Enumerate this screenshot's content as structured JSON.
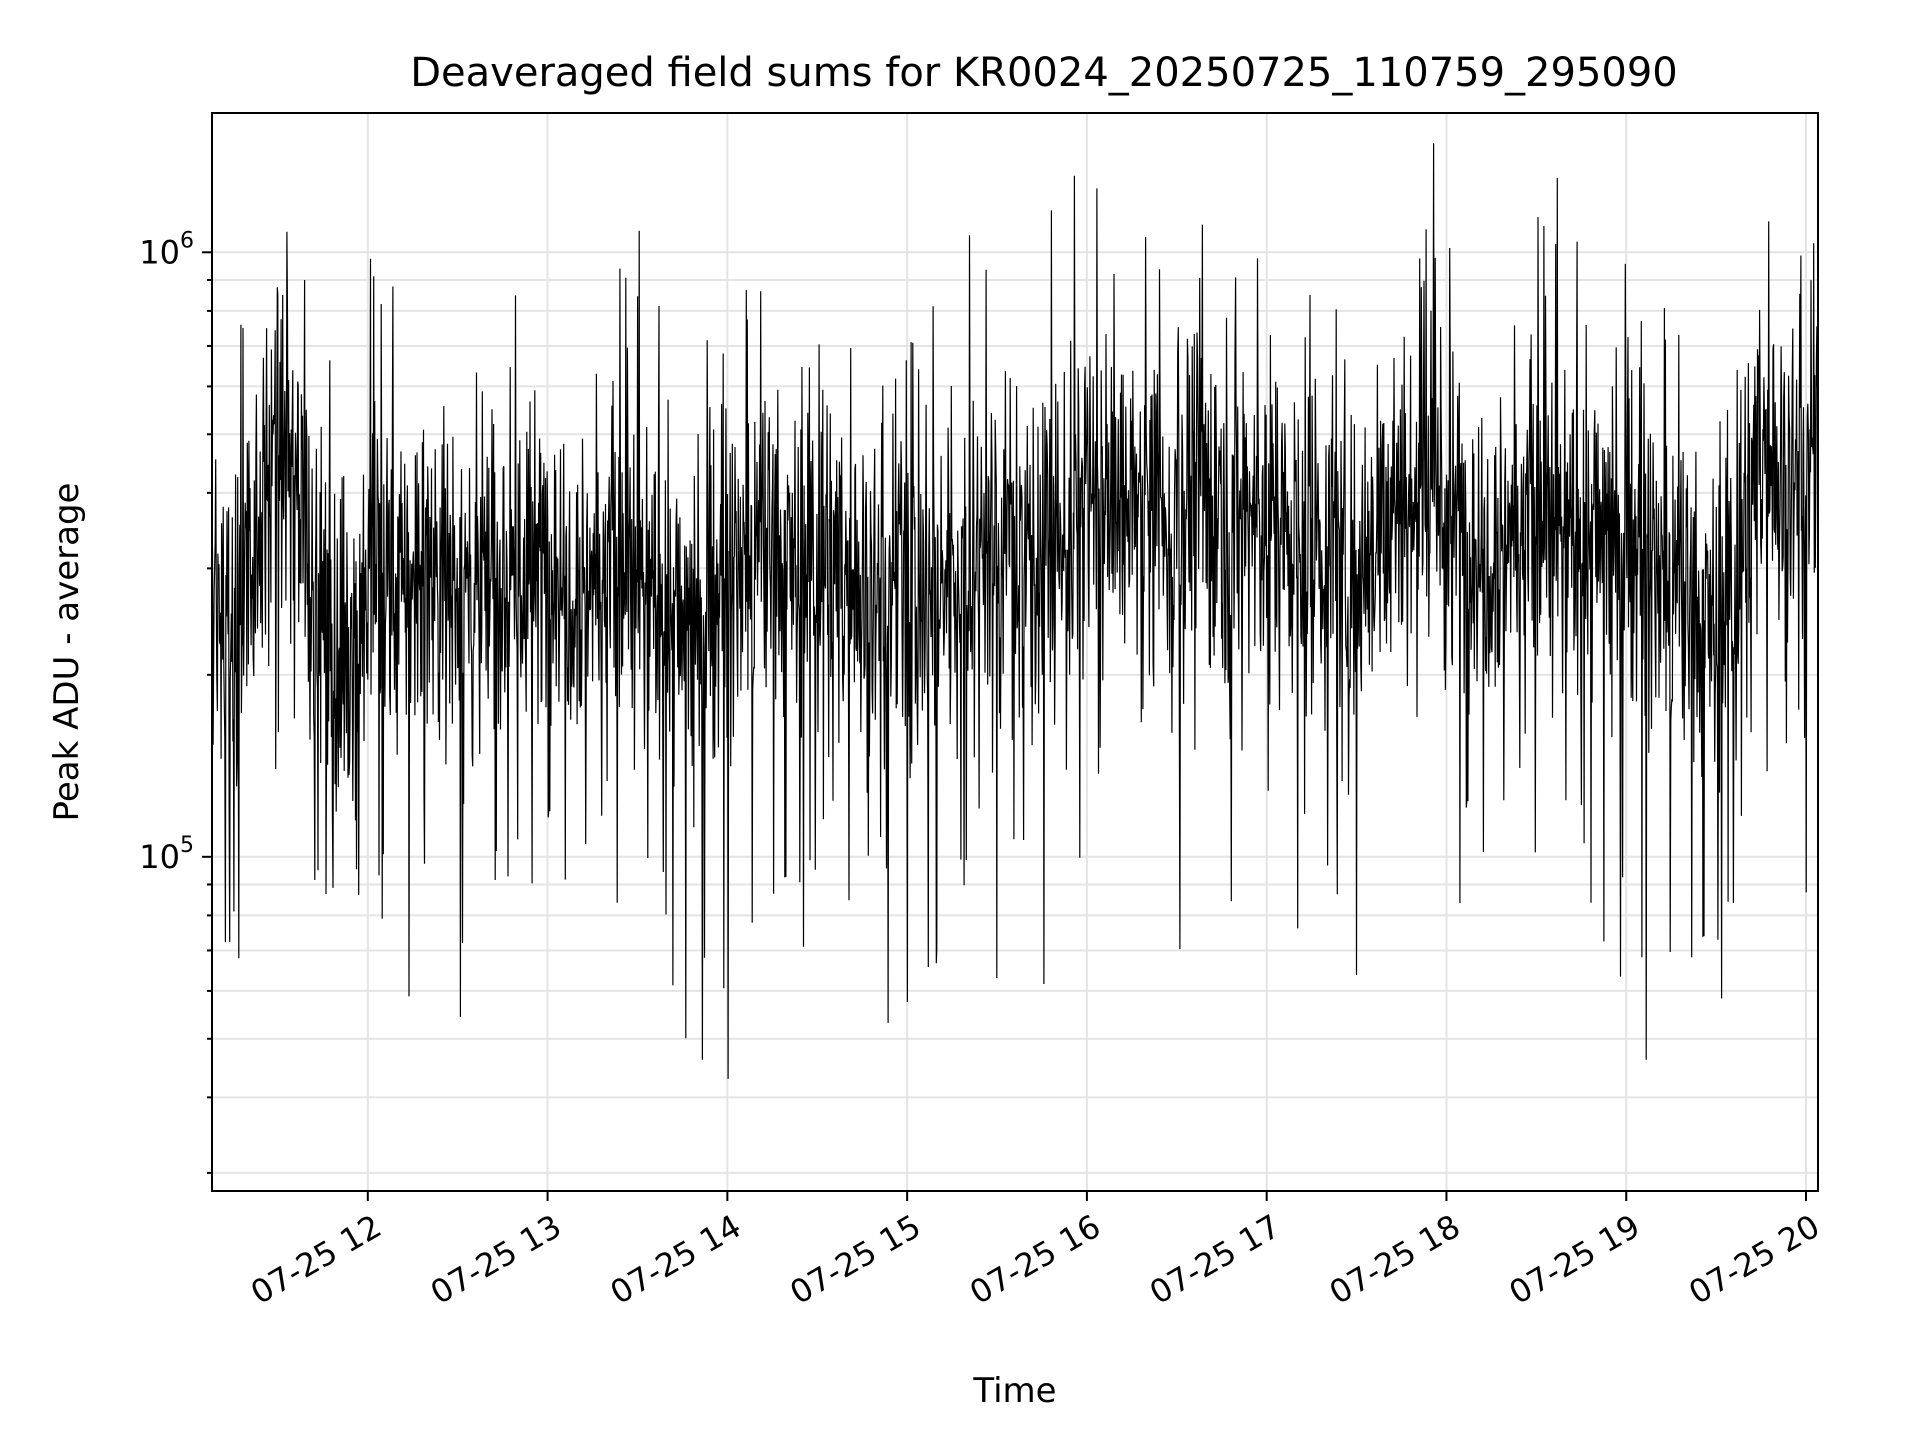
{
  "chart_data": {
    "type": "line",
    "title": "Deaveraged field sums for KR0024_20250725_110759_295090",
    "xlabel": "Time",
    "ylabel": "Peak ADU - average",
    "y_scale": "log",
    "ylim": [
      28000,
      1700000
    ],
    "xlim": [
      "2025-07-25T11:08:00",
      "2025-07-25T20:04:00"
    ],
    "grid": true,
    "x_ticks": [
      {
        "t": "2025-07-25T12:00:00",
        "label": "07-25 12"
      },
      {
        "t": "2025-07-25T13:00:00",
        "label": "07-25 13"
      },
      {
        "t": "2025-07-25T14:00:00",
        "label": "07-25 14"
      },
      {
        "t": "2025-07-25T15:00:00",
        "label": "07-25 15"
      },
      {
        "t": "2025-07-25T16:00:00",
        "label": "07-25 16"
      },
      {
        "t": "2025-07-25T17:00:00",
        "label": "07-25 17"
      },
      {
        "t": "2025-07-25T18:00:00",
        "label": "07-25 18"
      },
      {
        "t": "2025-07-25T19:00:00",
        "label": "07-25 19"
      },
      {
        "t": "2025-07-25T20:00:00",
        "label": "07-25 20"
      }
    ],
    "y_ticks": [
      {
        "value": 100000,
        "base": "10",
        "exp": "5"
      },
      {
        "value": 1000000,
        "base": "10",
        "exp": "6"
      }
    ],
    "line_color": "#000000",
    "series": [
      {
        "points": [
          [
            "2025-07-25T11:08:00",
            300000
          ],
          [
            "2025-07-25T11:15:00",
            250000
          ],
          [
            "2025-07-25T11:22:00",
            350000
          ],
          [
            "2025-07-25T11:30:00",
            480000
          ],
          [
            "2025-07-25T11:37:00",
            400000
          ],
          [
            "2025-07-25T11:45:00",
            250000
          ],
          [
            "2025-07-25T11:52:00",
            200000
          ],
          [
            "2025-07-25T12:00:00",
            280000
          ],
          [
            "2025-07-25T12:07:00",
            300000
          ],
          [
            "2025-07-25T12:15:00",
            270000
          ],
          [
            "2025-07-25T12:22:00",
            320000
          ],
          [
            "2025-07-25T12:30:00",
            280000
          ],
          [
            "2025-07-25T12:37:00",
            260000
          ],
          [
            "2025-07-25T12:45:00",
            300000
          ],
          [
            "2025-07-25T12:52:00",
            280000
          ],
          [
            "2025-07-25T13:00:00",
            320000
          ],
          [
            "2025-07-25T13:07:00",
            300000
          ],
          [
            "2025-07-25T13:15:00",
            290000
          ],
          [
            "2025-07-25T13:22:00",
            300000
          ],
          [
            "2025-07-25T13:30:00",
            280000
          ],
          [
            "2025-07-25T13:37:00",
            260000
          ],
          [
            "2025-07-25T13:45:00",
            240000
          ],
          [
            "2025-07-25T13:52:00",
            250000
          ],
          [
            "2025-07-25T14:00:00",
            280000
          ],
          [
            "2025-07-25T14:07:00",
            300000
          ],
          [
            "2025-07-25T14:15:00",
            320000
          ],
          [
            "2025-07-25T14:22:00",
            300000
          ],
          [
            "2025-07-25T14:30:00",
            310000
          ],
          [
            "2025-07-25T14:37:00",
            300000
          ],
          [
            "2025-07-25T14:45:00",
            280000
          ],
          [
            "2025-07-25T14:52:00",
            270000
          ],
          [
            "2025-07-25T15:00:00",
            290000
          ],
          [
            "2025-07-25T15:07:00",
            260000
          ],
          [
            "2025-07-25T15:15:00",
            300000
          ],
          [
            "2025-07-25T15:22:00",
            320000
          ],
          [
            "2025-07-25T15:30:00",
            330000
          ],
          [
            "2025-07-25T15:37:00",
            320000
          ],
          [
            "2025-07-25T15:45:00",
            340000
          ],
          [
            "2025-07-25T15:52:00",
            330000
          ],
          [
            "2025-07-25T16:00:00",
            380000
          ],
          [
            "2025-07-25T16:07:00",
            390000
          ],
          [
            "2025-07-25T16:15:00",
            370000
          ],
          [
            "2025-07-25T16:22:00",
            360000
          ],
          [
            "2025-07-25T16:30:00",
            380000
          ],
          [
            "2025-07-25T16:37:00",
            400000
          ],
          [
            "2025-07-25T16:45:00",
            390000
          ],
          [
            "2025-07-25T16:52:00",
            380000
          ],
          [
            "2025-07-25T17:00:00",
            370000
          ],
          [
            "2025-07-25T17:07:00",
            340000
          ],
          [
            "2025-07-25T17:15:00",
            330000
          ],
          [
            "2025-07-25T17:22:00",
            320000
          ],
          [
            "2025-07-25T17:30:00",
            310000
          ],
          [
            "2025-07-25T17:37:00",
            350000
          ],
          [
            "2025-07-25T17:45:00",
            380000
          ],
          [
            "2025-07-25T17:52:00",
            400000
          ],
          [
            "2025-07-25T18:00:00",
            360000
          ],
          [
            "2025-07-25T18:07:00",
            330000
          ],
          [
            "2025-07-25T18:15:00",
            340000
          ],
          [
            "2025-07-25T18:22:00",
            350000
          ],
          [
            "2025-07-25T18:30:00",
            360000
          ],
          [
            "2025-07-25T18:37:00",
            340000
          ],
          [
            "2025-07-25T18:45:00",
            330000
          ],
          [
            "2025-07-25T18:52:00",
            350000
          ],
          [
            "2025-07-25T19:00:00",
            340000
          ],
          [
            "2025-07-25T19:07:00",
            300000
          ],
          [
            "2025-07-25T19:15:00",
            270000
          ],
          [
            "2025-07-25T19:22:00",
            250000
          ],
          [
            "2025-07-25T19:30:00",
            240000
          ],
          [
            "2025-07-25T19:37:00",
            280000
          ],
          [
            "2025-07-25T19:45:00",
            500000
          ],
          [
            "2025-07-25T19:52:00",
            420000
          ],
          [
            "2025-07-25T20:00:00",
            450000
          ],
          [
            "2025-07-25T20:04:00",
            480000
          ]
        ]
      }
    ]
  }
}
